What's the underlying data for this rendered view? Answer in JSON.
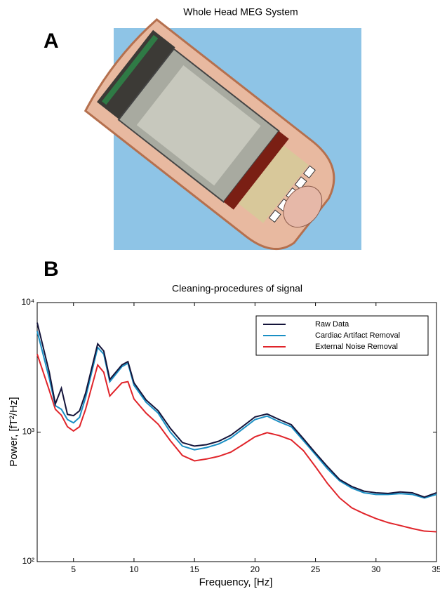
{
  "panel_a": {
    "label": "A",
    "title": "Whole Head MEG System"
  },
  "panel_b": {
    "label": "B"
  },
  "chart_data": {
    "type": "line",
    "title": "Cleaning-procedures of signal",
    "x_label": "Frequency, [Hz]",
    "y_label": "Power, [fT²/Hz]",
    "log_y": true,
    "grid": false,
    "legend_corner": "upper right",
    "xlim": [
      2,
      35
    ],
    "ylim": [
      100,
      10000
    ],
    "xticks": [
      5,
      10,
      15,
      20,
      25,
      30,
      35
    ],
    "yticks": [
      {
        "value": 100,
        "label": "10²"
      },
      {
        "value": 1000,
        "label": "10³"
      },
      {
        "value": 10000,
        "label": "10⁴"
      }
    ],
    "x": [
      2,
      3,
      3.5,
      4,
      4.5,
      5,
      5.5,
      6,
      7,
      7.5,
      8,
      9,
      9.5,
      10,
      11,
      12,
      13,
      14,
      15,
      16,
      17,
      18,
      19,
      20,
      21,
      22,
      23,
      24,
      25,
      26,
      27,
      28,
      29,
      30,
      31,
      32,
      33,
      34,
      35
    ],
    "series": [
      {
        "name": "Raw Data",
        "color": "#14143a",
        "values": [
          7000,
          2900,
          1650,
          2180,
          1370,
          1340,
          1460,
          2000,
          4800,
          4230,
          2550,
          3300,
          3500,
          2400,
          1770,
          1460,
          1070,
          830,
          780,
          800,
          850,
          945,
          1110,
          1310,
          1380,
          1250,
          1140,
          890,
          690,
          540,
          430,
          380,
          350,
          340,
          336,
          345,
          340,
          315,
          340
        ]
      },
      {
        "name": "Cardiac Artifact Removal",
        "color": "#1a8fc4",
        "values": [
          6000,
          2600,
          1600,
          1500,
          1250,
          1180,
          1300,
          1850,
          4500,
          4000,
          2450,
          3200,
          3400,
          2300,
          1700,
          1400,
          1000,
          780,
          730,
          760,
          810,
          900,
          1060,
          1250,
          1330,
          1200,
          1100,
          860,
          670,
          520,
          420,
          370,
          340,
          330,
          330,
          335,
          330,
          310,
          330
        ]
      },
      {
        "name": "External Noise Removal",
        "color": "#e0242a",
        "values": [
          4000,
          2100,
          1500,
          1350,
          1100,
          1020,
          1100,
          1500,
          3300,
          2900,
          1900,
          2400,
          2450,
          1800,
          1400,
          1150,
          860,
          660,
          600,
          620,
          650,
          700,
          800,
          920,
          990,
          940,
          870,
          720,
          540,
          400,
          310,
          260,
          235,
          215,
          200,
          190,
          180,
          172,
          170
        ]
      }
    ]
  }
}
